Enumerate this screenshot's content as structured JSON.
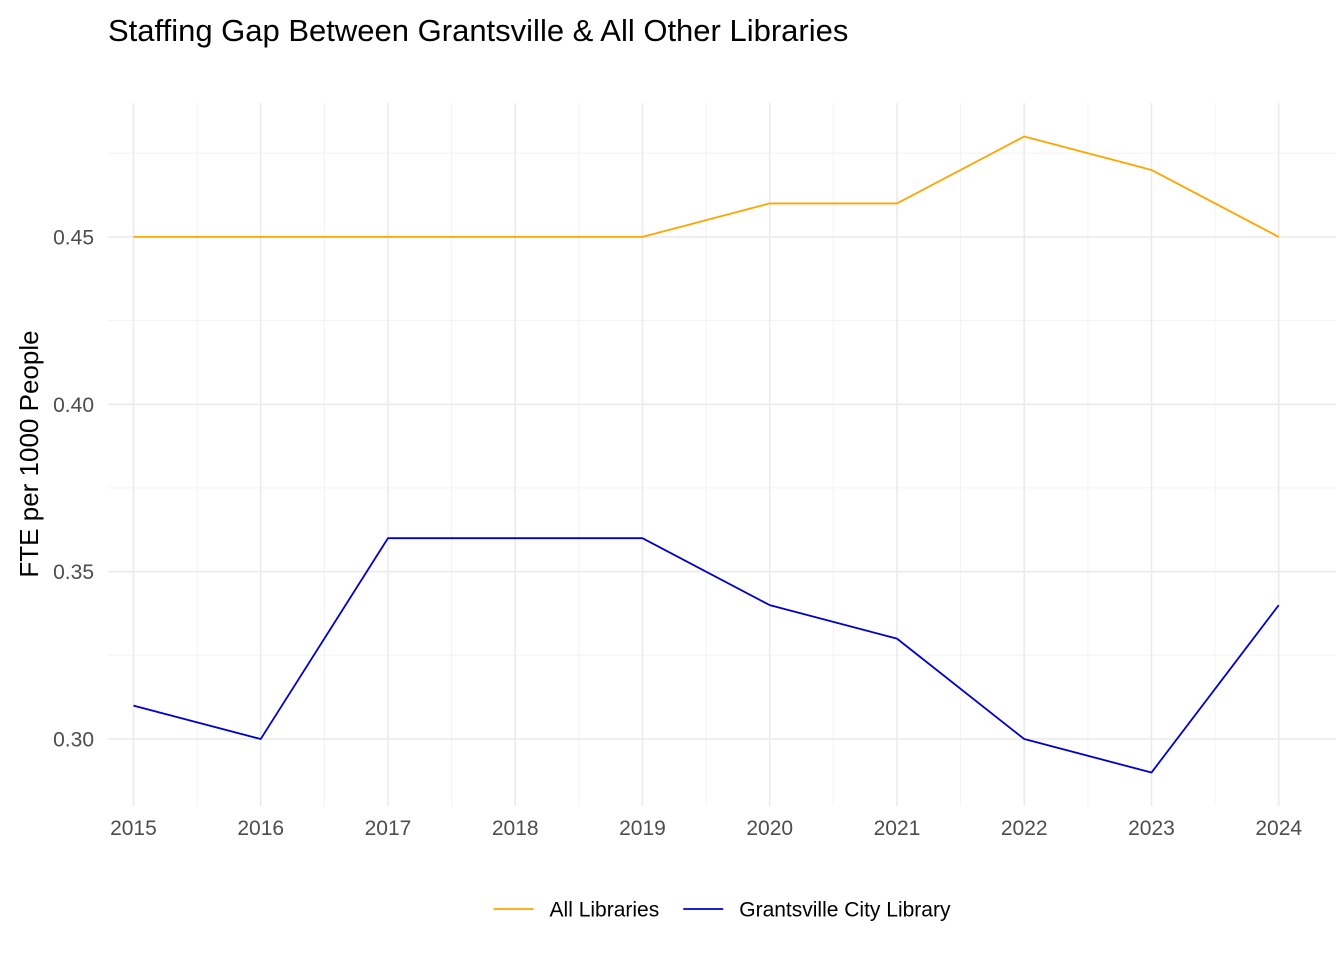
{
  "chart_data": {
    "type": "line",
    "title": "Staffing Gap Between Grantsville & All Other Libraries",
    "xlabel": "",
    "ylabel": "FTE per 1000 People",
    "x": [
      2015,
      2016,
      2017,
      2018,
      2019,
      2020,
      2021,
      2022,
      2023,
      2024
    ],
    "x_tick_labels": [
      "2015",
      "2016",
      "2017",
      "2018",
      "2019",
      "2020",
      "2021",
      "2022",
      "2023",
      "2024"
    ],
    "y_ticks": [
      0.3,
      0.35,
      0.4,
      0.45
    ],
    "y_tick_labels": [
      "0.30",
      "0.35",
      "0.40",
      "0.45"
    ],
    "xlim": [
      2014.8,
      2024.45
    ],
    "ylim": [
      0.28,
      0.49
    ],
    "grid": true,
    "legend_position": "bottom",
    "series": [
      {
        "name": "All Libraries",
        "color": "#FFA500",
        "values": [
          0.45,
          0.45,
          0.45,
          0.45,
          0.45,
          0.46,
          0.46,
          0.48,
          0.47,
          0.45
        ]
      },
      {
        "name": "Grantsville City Library",
        "color": "#0000CD",
        "values": [
          0.31,
          0.3,
          0.36,
          0.36,
          0.36,
          0.34,
          0.33,
          0.3,
          0.29,
          0.34
        ]
      }
    ]
  }
}
